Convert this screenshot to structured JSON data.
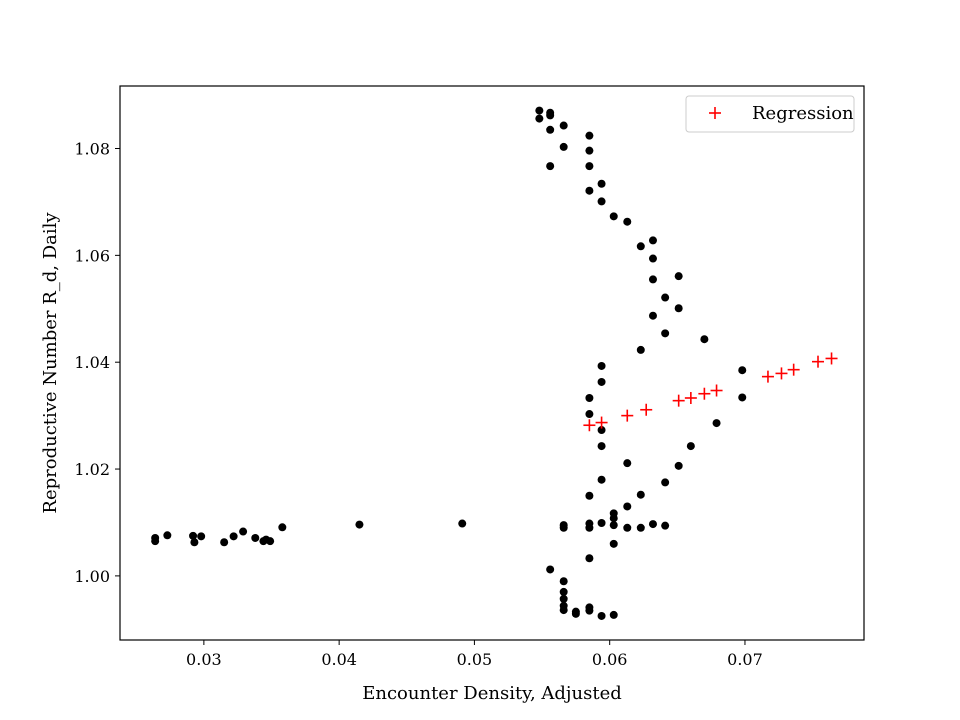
{
  "chart_data": {
    "type": "scatter",
    "xlabel": "Encounter Density, Adjusted",
    "ylabel": "Reproductive Number R_d, Daily",
    "xlim": [
      0.0238,
      0.0788
    ],
    "ylim": [
      0.988,
      1.0917
    ],
    "xticks": [
      0.03,
      0.04,
      0.05,
      0.06,
      0.07
    ],
    "xtick_labels": [
      "0.03",
      "0.04",
      "0.05",
      "0.06",
      "0.07"
    ],
    "yticks": [
      1.0,
      1.02,
      1.04,
      1.06,
      1.08
    ],
    "ytick_labels": [
      "1.00",
      "1.02",
      "1.04",
      "1.06",
      "1.08"
    ],
    "grid": false,
    "legend_position": "top-right",
    "series": [
      {
        "color": "#000000",
        "marker": "circle",
        "x": [
          0.0264,
          0.0264,
          0.0273,
          0.0292,
          0.0293,
          0.0298,
          0.0315,
          0.0322,
          0.0329,
          0.0338,
          0.0344,
          0.0346,
          0.0349,
          0.0358,
          0.0415,
          0.0491,
          0.0548,
          0.0548,
          0.0556,
          0.0556,
          0.0556,
          0.0556,
          0.0566,
          0.0566,
          0.0585,
          0.0585,
          0.0585,
          0.0585,
          0.0594,
          0.0594,
          0.0603,
          0.0613,
          0.0623,
          0.0632,
          0.0632,
          0.0632,
          0.0641,
          0.0651,
          0.0651,
          0.0632,
          0.0641,
          0.067,
          0.0623,
          0.0594,
          0.0594,
          0.0585,
          0.0585,
          0.0594,
          0.0594,
          0.0698,
          0.0698,
          0.0679,
          0.066,
          0.0651,
          0.0641,
          0.0613,
          0.0594,
          0.0585,
          0.0623,
          0.0613,
          0.0603,
          0.0603,
          0.0566,
          0.0566,
          0.0585,
          0.0585,
          0.0594,
          0.0603,
          0.0613,
          0.0623,
          0.0632,
          0.0641,
          0.0603,
          0.0585,
          0.0556,
          0.0566,
          0.0566,
          0.0566,
          0.0566,
          0.0566,
          0.0575,
          0.0575,
          0.0585,
          0.0585,
          0.0594,
          0.0603
        ],
        "y": [
          1.0065,
          1.0071,
          1.0076,
          1.0075,
          1.0063,
          1.0074,
          1.0063,
          1.0074,
          1.0083,
          1.0071,
          1.0065,
          1.0068,
          1.0065,
          1.0091,
          1.0096,
          1.0098,
          1.0871,
          1.0856,
          1.0867,
          1.0862,
          1.0835,
          1.0767,
          1.0843,
          1.0803,
          1.0824,
          1.0796,
          1.0767,
          1.0721,
          1.0734,
          1.0701,
          1.0673,
          1.0663,
          1.0617,
          1.0628,
          1.0594,
          1.0555,
          1.0521,
          1.0561,
          1.0501,
          1.0487,
          1.0454,
          1.0443,
          1.0423,
          1.0393,
          1.0363,
          1.0333,
          1.0303,
          1.0273,
          1.0243,
          1.0385,
          1.0334,
          1.0286,
          1.0243,
          1.0206,
          1.0175,
          1.0211,
          1.018,
          1.015,
          1.0152,
          1.013,
          1.0117,
          1.0108,
          1.0095,
          1.009,
          1.0098,
          1.009,
          1.0099,
          1.0095,
          1.009,
          1.009,
          1.0097,
          1.0094,
          1.006,
          1.0033,
          1.0012,
          0.999,
          0.997,
          0.9957,
          0.9944,
          0.9936,
          0.9933,
          0.9929,
          0.9941,
          0.9935,
          0.9925,
          0.9927
        ]
      },
      {
        "name": "Regression",
        "color": "#ff0000",
        "marker": "plus",
        "x": [
          0.0585,
          0.0594,
          0.0613,
          0.0627,
          0.0651,
          0.066,
          0.067,
          0.0679,
          0.0717,
          0.0727,
          0.0736,
          0.0754,
          0.0764
        ],
        "y": [
          1.0282,
          1.0287,
          1.03,
          1.0311,
          1.0328,
          1.0333,
          1.0341,
          1.0347,
          1.0373,
          1.0379,
          1.0386,
          1.0401,
          1.0407
        ]
      }
    ]
  }
}
